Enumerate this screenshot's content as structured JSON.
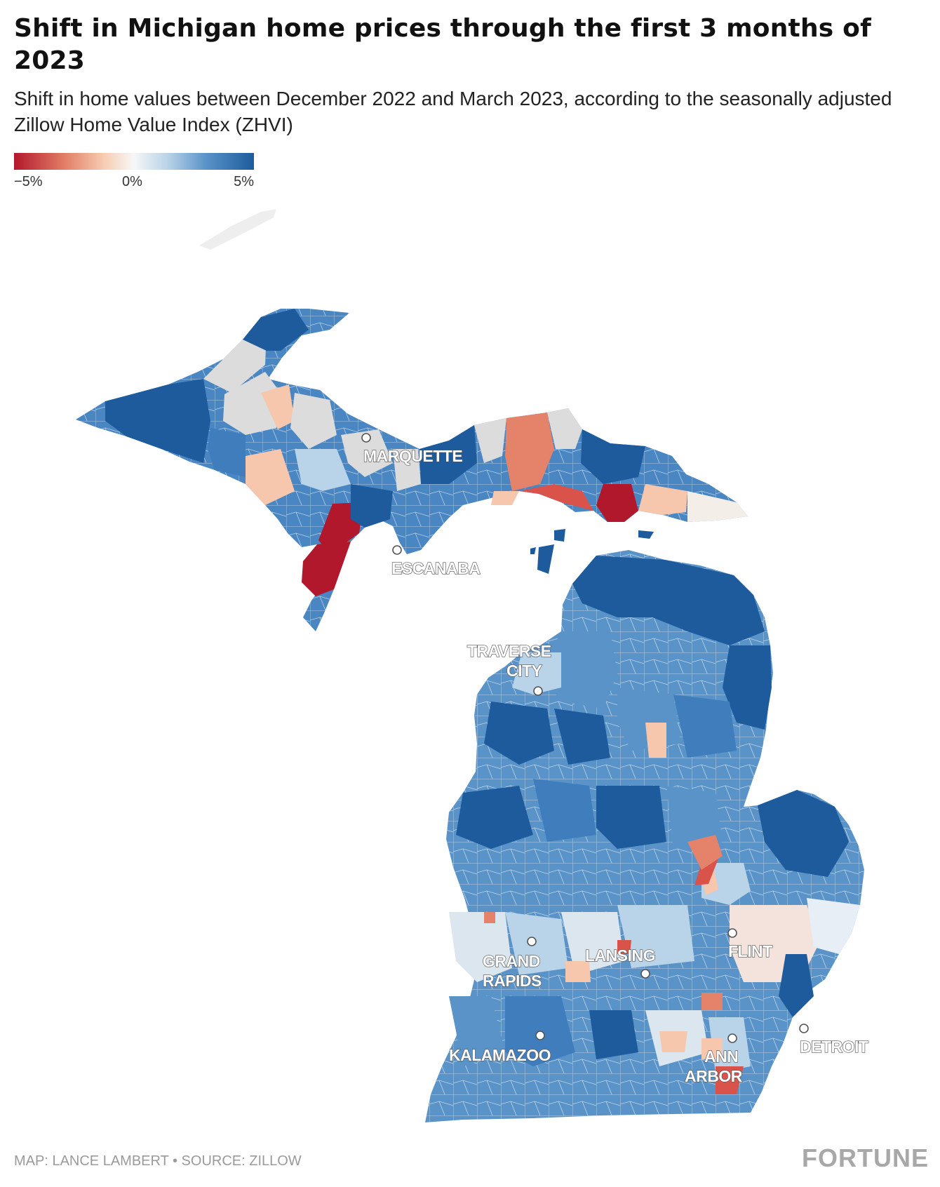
{
  "title": "Shift in Michigan home prices through the first 3 months of 2023",
  "subtitle": "Shift in home values between December 2022 and March 2023, according to the seasonally adjusted Zillow Home Value Index (ZHVI)",
  "legend": {
    "min_label": "−5%",
    "mid_label": "0%",
    "max_label": "5%",
    "colors": [
      "#b2182b",
      "#e4826a",
      "#f7cfb5",
      "#f7f7f7",
      "#b9d3e8",
      "#5a93c8",
      "#1d5b9c"
    ]
  },
  "cities": {
    "marquette": "MARQUETTE",
    "escanaba": "ESCANABA",
    "traverse_city_1": "TRAVERSE",
    "traverse_city_2": "CITY",
    "grand_rapids_1": "GRAND",
    "grand_rapids_2": "RAPIDS",
    "lansing": "LANSING",
    "flint": "FLINT",
    "kalamazoo": "KALAMAZOO",
    "ann_arbor_1": "ANN",
    "ann_arbor_2": "ARBOR",
    "detroit": "DETROIT"
  },
  "footer": {
    "credit": "MAP: LANCE LAMBERT • SOURCE: ZILLOW",
    "brand": "FORTUNE"
  }
}
